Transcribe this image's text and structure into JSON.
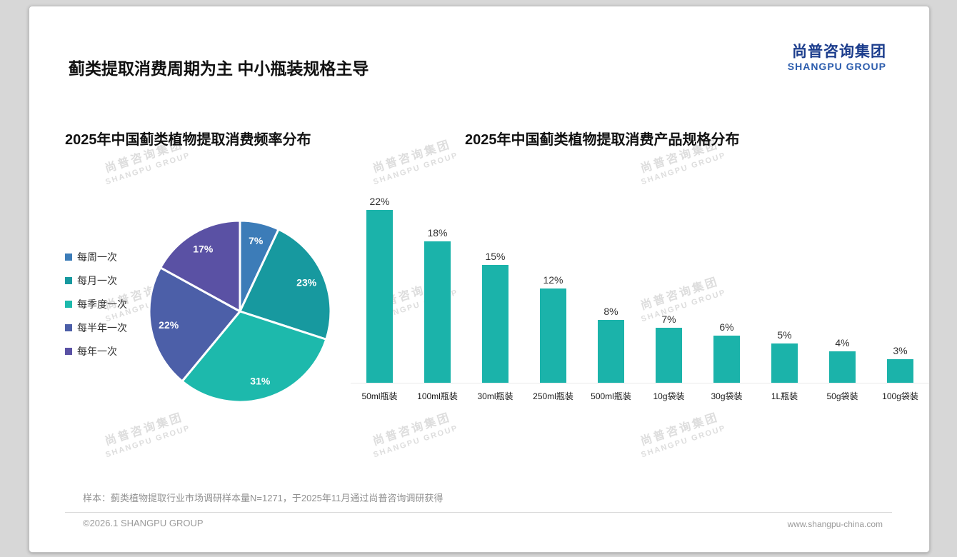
{
  "page": {
    "title": "蓟类提取消费周期为主 中小瓶装规格主导",
    "logo": {
      "cn": "尚普咨询集团",
      "en": "SHANGPU GROUP"
    },
    "watermark": {
      "cn": "尚普咨询集团",
      "en": "SHANGPU GROUP"
    },
    "note": "样本：蓟类植物提取行业市场调研样本量N=1271，于2025年11月通过尚普咨询调研获得",
    "footer_left": "©2026.1 SHANGPU GROUP",
    "footer_right": "www.shangpu-china.com"
  },
  "chart_data": [
    {
      "type": "pie",
      "title": "2025年中国蓟类植物提取消费频率分布",
      "labels": [
        "每周一次",
        "每月一次",
        "每季度一次",
        "每半年一次",
        "每年一次"
      ],
      "values": [
        7,
        23,
        31,
        22,
        17
      ],
      "colors": [
        "#3c7cb8",
        "#17999f",
        "#1db9ac",
        "#4c5fa8",
        "#5a51a4"
      ],
      "label_format": "percent",
      "legend_position": "left",
      "start_angle_deg": 0,
      "direction": "clockwise"
    },
    {
      "type": "bar",
      "title": "2025年中国蓟类植物提取消费产品规格分布",
      "categories": [
        "50ml瓶装",
        "100ml瓶装",
        "30ml瓶装",
        "250ml瓶装",
        "500ml瓶装",
        "10g袋装",
        "30g袋装",
        "1L瓶装",
        "50g袋装",
        "100g袋装"
      ],
      "values": [
        22,
        18,
        15,
        12,
        8,
        7,
        6,
        5,
        4,
        3
      ],
      "bar_color": "#1bb3aa",
      "value_suffix": "%",
      "ylim": [
        0,
        24
      ],
      "grid": false,
      "legend": false
    }
  ]
}
